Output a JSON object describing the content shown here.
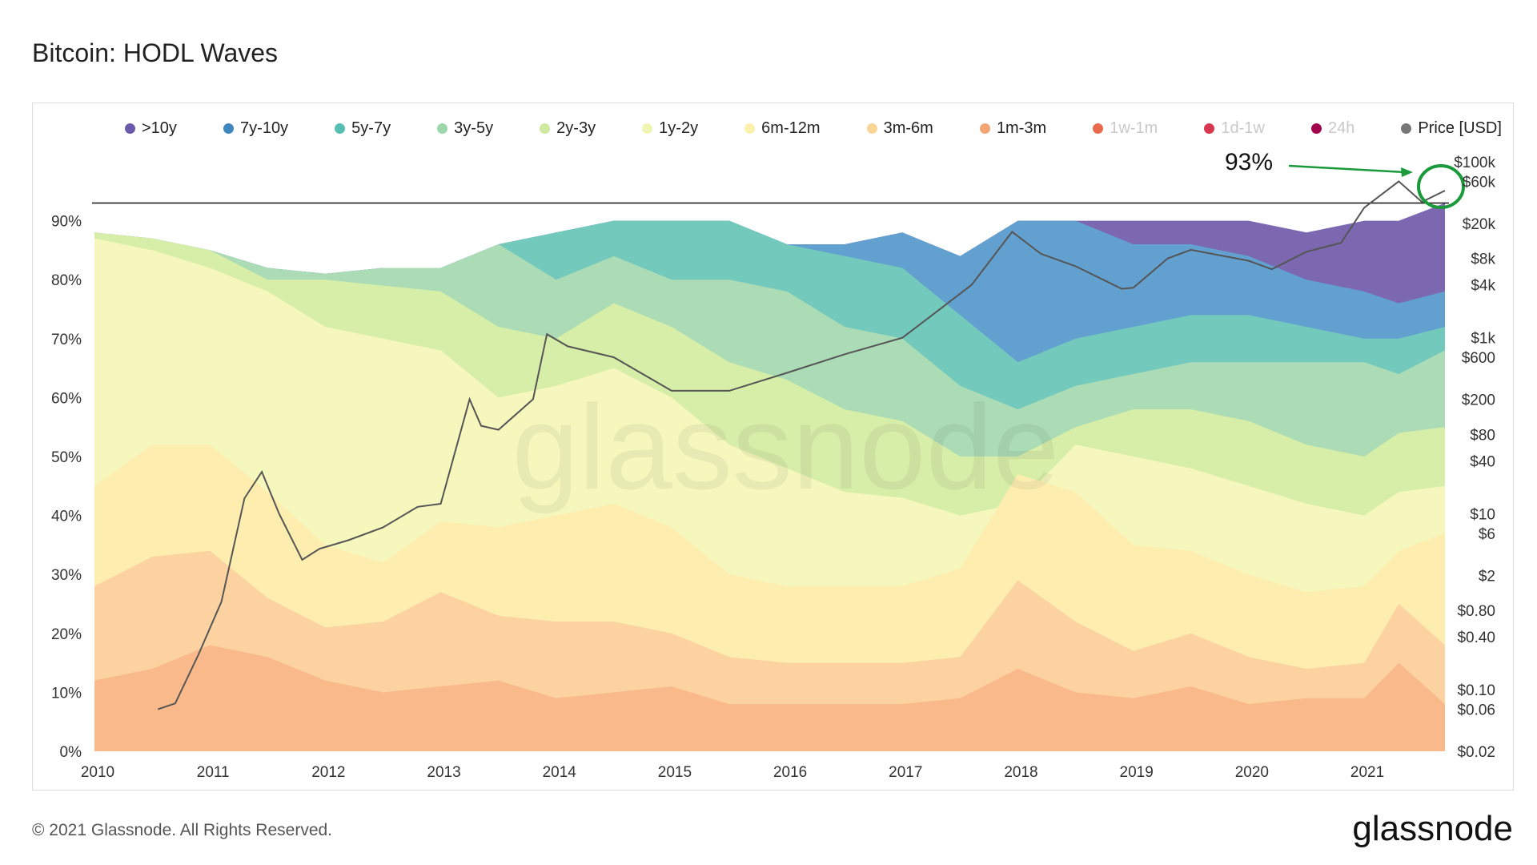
{
  "page": {
    "title": "Bitcoin: HODL Waves",
    "footer": "© 2021 Glassnode. All Rights Reserved.",
    "logo": "glassnode",
    "watermark": "glassnode",
    "annotation": "93%"
  },
  "chart_data": {
    "type": "area",
    "stacked": true,
    "title": "Bitcoin: HODL Waves",
    "x_ticks": [
      "2010",
      "2011",
      "2012",
      "2013",
      "2014",
      "2015",
      "2016",
      "2017",
      "2018",
      "2019",
      "2020",
      "2021"
    ],
    "x_range": [
      2010.0,
      2021.7
    ],
    "y_left_ticks": [
      "90%",
      "80%",
      "70%",
      "60%",
      "50%",
      "40%",
      "30%",
      "20%",
      "10%",
      "0%"
    ],
    "y_left_range": [
      0,
      100
    ],
    "y_right_ticks": [
      "$100k",
      "$60k",
      "$20k",
      "$8k",
      "$4k",
      "$1k",
      "$600",
      "$200",
      "$80",
      "$40",
      "$10",
      "$6",
      "$2",
      "$0.80",
      "$0.40",
      "$0.10",
      "$0.06",
      "$0.02"
    ],
    "y_right_scale": "log",
    "y_right_range": [
      0.02,
      100000
    ],
    "reference_line": {
      "y": 93,
      "label": "93%"
    },
    "legend": [
      {
        "name": ">10y",
        "color": "#6a5aaa",
        "enabled": true
      },
      {
        "name": "7y-10y",
        "color": "#3f86c0",
        "enabled": true
      },
      {
        "name": "5y-7y",
        "color": "#56bfb2",
        "enabled": true
      },
      {
        "name": "3y-5y",
        "color": "#9dd8ad",
        "enabled": true
      },
      {
        "name": "2y-3y",
        "color": "#cdeaa0",
        "enabled": true
      },
      {
        "name": "1y-2y",
        "color": "#f1f5b4",
        "enabled": true
      },
      {
        "name": "6m-12m",
        "color": "#fbf1ac",
        "enabled": true
      },
      {
        "name": "3m-6m",
        "color": "#f9d695",
        "enabled": true
      },
      {
        "name": "1m-3m",
        "color": "#f4a574",
        "enabled": true
      },
      {
        "name": "1w-1m",
        "color": "#ea6a4f",
        "enabled": false
      },
      {
        "name": "1d-1w",
        "color": "#d8364e",
        "enabled": false
      },
      {
        "name": "24h",
        "color": "#a3044e",
        "enabled": false
      },
      {
        "name": "Price [USD]",
        "color": "#777777",
        "enabled": true
      }
    ],
    "series": [
      {
        "name": "1m-3m",
        "color": "#f9b98a",
        "x": [
          2010.0,
          2010.5,
          2011.0,
          2011.5,
          2012.0,
          2012.5,
          2013.0,
          2013.5,
          2014.0,
          2014.5,
          2015.0,
          2015.5,
          2016.0,
          2016.5,
          2017.0,
          2017.5,
          2018.0,
          2018.5,
          2019.0,
          2019.5,
          2020.0,
          2020.5,
          2021.0,
          2021.3,
          2021.7
        ],
        "y": [
          12,
          14,
          18,
          16,
          12,
          10,
          11,
          12,
          9,
          10,
          11,
          8,
          8,
          8,
          8,
          9,
          14,
          10,
          9,
          11,
          8,
          9,
          9,
          15,
          8
        ]
      },
      {
        "name": "3m-6m",
        "color": "#fbd2a0",
        "x": [
          2010.0,
          2010.5,
          2011.0,
          2011.5,
          2012.0,
          2012.5,
          2013.0,
          2013.5,
          2014.0,
          2014.5,
          2015.0,
          2015.5,
          2016.0,
          2016.5,
          2017.0,
          2017.5,
          2018.0,
          2018.5,
          2019.0,
          2019.5,
          2020.0,
          2020.5,
          2021.0,
          2021.3,
          2021.7
        ],
        "y": [
          28,
          33,
          34,
          26,
          21,
          22,
          27,
          23,
          22,
          22,
          20,
          16,
          15,
          15,
          15,
          16,
          29,
          22,
          17,
          20,
          16,
          14,
          15,
          25,
          18
        ]
      },
      {
        "name": "6m-12m",
        "color": "#fdeeb0",
        "x": [
          2010.0,
          2010.5,
          2011.0,
          2011.5,
          2012.0,
          2012.5,
          2013.0,
          2013.5,
          2014.0,
          2014.5,
          2015.0,
          2015.5,
          2016.0,
          2016.5,
          2017.0,
          2017.5,
          2018.0,
          2018.5,
          2019.0,
          2019.5,
          2020.0,
          2020.5,
          2021.0,
          2021.3,
          2021.7
        ],
        "y": [
          45,
          52,
          52,
          44,
          35,
          32,
          39,
          38,
          40,
          42,
          38,
          30,
          28,
          28,
          28,
          31,
          47,
          44,
          35,
          34,
          30,
          27,
          28,
          34,
          37
        ]
      },
      {
        "name": "1y-2y",
        "color": "#f5f7bd",
        "x": [
          2010.0,
          2010.5,
          2011.0,
          2011.5,
          2012.0,
          2012.5,
          2013.0,
          2013.5,
          2014.0,
          2014.5,
          2015.0,
          2015.5,
          2016.0,
          2016.5,
          2017.0,
          2017.5,
          2018.0,
          2018.5,
          2019.0,
          2019.5,
          2020.0,
          2020.5,
          2021.0,
          2021.3,
          2021.7
        ],
        "y": [
          87,
          85,
          82,
          78,
          72,
          70,
          68,
          60,
          62,
          65,
          60,
          52,
          48,
          44,
          43,
          40,
          42,
          52,
          50,
          48,
          45,
          42,
          40,
          44,
          45
        ]
      },
      {
        "name": "2y-3y",
        "color": "#d7eea8",
        "x": [
          2010.0,
          2010.5,
          2011.0,
          2011.5,
          2012.0,
          2012.5,
          2013.0,
          2013.5,
          2014.0,
          2014.5,
          2015.0,
          2015.5,
          2016.0,
          2016.5,
          2017.0,
          2017.5,
          2018.0,
          2018.5,
          2019.0,
          2019.5,
          2020.0,
          2020.5,
          2021.0,
          2021.3,
          2021.7
        ],
        "y": [
          88,
          87,
          85,
          80,
          80,
          79,
          78,
          72,
          70,
          76,
          72,
          66,
          63,
          58,
          56,
          50,
          50,
          55,
          58,
          58,
          56,
          52,
          50,
          54,
          55
        ]
      },
      {
        "name": "3y-5y",
        "color": "#abdcb5",
        "x": [
          2010.0,
          2010.5,
          2011.0,
          2011.5,
          2012.0,
          2012.5,
          2013.0,
          2013.5,
          2014.0,
          2014.5,
          2015.0,
          2015.5,
          2016.0,
          2016.5,
          2017.0,
          2017.5,
          2018.0,
          2018.5,
          2019.0,
          2019.5,
          2020.0,
          2020.5,
          2021.0,
          2021.3,
          2021.7
        ],
        "y": [
          88,
          87,
          85,
          82,
          81,
          82,
          82,
          86,
          80,
          84,
          80,
          80,
          78,
          72,
          70,
          62,
          58,
          62,
          64,
          66,
          66,
          66,
          66,
          64,
          68
        ]
      },
      {
        "name": "5y-7y",
        "color": "#74c9bd",
        "x": [
          2010.0,
          2010.5,
          2011.0,
          2011.5,
          2012.0,
          2012.5,
          2013.0,
          2013.5,
          2014.0,
          2014.5,
          2015.0,
          2015.5,
          2016.0,
          2016.5,
          2017.0,
          2017.5,
          2018.0,
          2018.5,
          2019.0,
          2019.5,
          2020.0,
          2020.5,
          2021.0,
          2021.3,
          2021.7
        ],
        "y": [
          88,
          87,
          85,
          82,
          81,
          82,
          82,
          86,
          88,
          90,
          90,
          90,
          86,
          84,
          82,
          74,
          66,
          70,
          72,
          74,
          74,
          72,
          70,
          70,
          72
        ]
      },
      {
        "name": "7y-10y",
        "color": "#62a0cf",
        "x": [
          2010.0,
          2010.5,
          2011.0,
          2011.5,
          2012.0,
          2012.5,
          2013.0,
          2013.5,
          2014.0,
          2014.5,
          2015.0,
          2015.5,
          2016.0,
          2016.5,
          2017.0,
          2017.5,
          2018.0,
          2018.5,
          2019.0,
          2019.5,
          2020.0,
          2020.5,
          2021.0,
          2021.3,
          2021.7
        ],
        "y": [
          88,
          87,
          85,
          82,
          81,
          82,
          82,
          86,
          88,
          90,
          90,
          90,
          86,
          86,
          88,
          84,
          90,
          90,
          86,
          86,
          84,
          80,
          78,
          76,
          78
        ]
      },
      {
        "name": ">10y",
        "color": "#7b68b0",
        "x": [
          2010.0,
          2010.5,
          2011.0,
          2011.5,
          2012.0,
          2012.5,
          2013.0,
          2013.5,
          2014.0,
          2014.5,
          2015.0,
          2015.5,
          2016.0,
          2016.5,
          2017.0,
          2017.5,
          2018.0,
          2018.5,
          2019.0,
          2019.5,
          2020.0,
          2020.5,
          2021.0,
          2021.3,
          2021.7
        ],
        "y": [
          88,
          87,
          85,
          82,
          81,
          82,
          82,
          86,
          88,
          90,
          90,
          90,
          86,
          86,
          88,
          84,
          90,
          90,
          90,
          90,
          90,
          88,
          90,
          90,
          93
        ]
      }
    ],
    "price_series": {
      "name": "Price [USD]",
      "color": "#555555",
      "x": [
        2010.55,
        2010.7,
        2010.9,
        2011.1,
        2011.3,
        2011.45,
        2011.6,
        2011.8,
        2011.95,
        2012.2,
        2012.5,
        2012.8,
        2013.0,
        2013.25,
        2013.35,
        2013.5,
        2013.8,
        2013.92,
        2014.1,
        2014.5,
        2015.0,
        2015.5,
        2016.0,
        2016.5,
        2017.0,
        2017.3,
        2017.6,
        2017.95,
        2018.2,
        2018.5,
        2018.9,
        2019.0,
        2019.3,
        2019.5,
        2020.0,
        2020.2,
        2020.5,
        2020.8,
        2021.0,
        2021.3,
        2021.5,
        2021.7
      ],
      "y": [
        0.06,
        0.07,
        0.25,
        1,
        15,
        30,
        10,
        3,
        4,
        5,
        7,
        12,
        13,
        200,
        100,
        90,
        200,
        1100,
        800,
        600,
        250,
        250,
        400,
        650,
        1000,
        2000,
        4000,
        16000,
        9000,
        6500,
        3600,
        3700,
        8000,
        10000,
        7500,
        6000,
        9500,
        12000,
        30000,
        60000,
        35000,
        47000
      ]
    }
  }
}
